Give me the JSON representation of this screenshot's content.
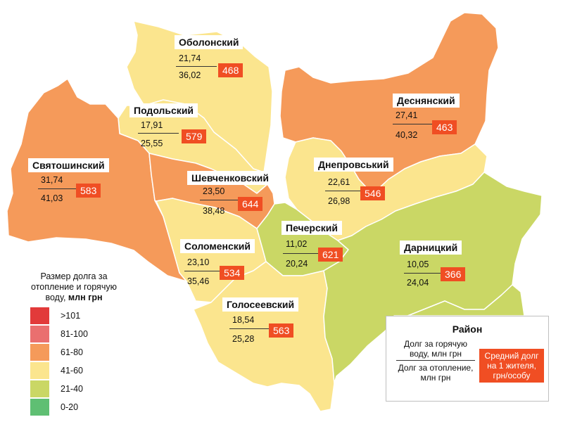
{
  "colors": {
    "range_gt101": "#e23a3a",
    "range_81_100": "#ea6f6f",
    "range_61_80": "#f59a5a",
    "range_41_60": "#fbe58e",
    "range_21_40": "#cad765",
    "range_0_20": "#5fbf73",
    "avg_badge": "#f04e23"
  },
  "districts": [
    {
      "name": "Оболонский",
      "hot_water": "21,74",
      "heating": "36,02",
      "avg": "468",
      "fill": "#fbe58e"
    },
    {
      "name": "Подольский",
      "hot_water": "17,91",
      "heating": "25,55",
      "avg": "579",
      "fill": "#fbe58e"
    },
    {
      "name": "Святошинский",
      "hot_water": "31,74",
      "heating": "41,03",
      "avg": "583",
      "fill": "#f59a5a"
    },
    {
      "name": "Шевченковский",
      "hot_water": "23,50",
      "heating": "38,48",
      "avg": "644",
      "fill": "#f59a5a"
    },
    {
      "name": "Деснянский",
      "hot_water": "27,41",
      "heating": "40,32",
      "avg": "463",
      "fill": "#f59a5a"
    },
    {
      "name": "Днепровський",
      "hot_water": "22,61",
      "heating": "26,98",
      "avg": "546",
      "fill": "#fbe58e"
    },
    {
      "name": "Печерский",
      "hot_water": "11,02",
      "heating": "20,24",
      "avg": "621",
      "fill": "#cad765"
    },
    {
      "name": "Соломенский",
      "hot_water": "23,10",
      "heating": "35,46",
      "avg": "534",
      "fill": "#fbe58e"
    },
    {
      "name": "Дарницкий",
      "hot_water": "10,05",
      "heating": "24,04",
      "avg": "366",
      "fill": "#cad765"
    },
    {
      "name": "Голосеевский",
      "hot_water": "18,54",
      "heating": "25,28",
      "avg": "563",
      "fill": "#fbe58e"
    }
  ],
  "legend": {
    "title_line1": "Размер долга за",
    "title_line2": "отопление и горячую",
    "title_line3": "воду,",
    "title_unit": "млн грн",
    "ranges": [
      {
        "label": ">101",
        "color": "#e23a3a"
      },
      {
        "label": "81-100",
        "color": "#ea6f6f"
      },
      {
        "label": "61-80",
        "color": "#f59a5a"
      },
      {
        "label": "41-60",
        "color": "#fbe58e"
      },
      {
        "label": "21-40",
        "color": "#cad765"
      },
      {
        "label": "0-20",
        "color": "#5fbf73"
      }
    ]
  },
  "key": {
    "title": "Район",
    "hot_water_label": "Долг за горячую воду, млн грн",
    "heating_label": "Долг за отопление, млн грн",
    "avg_label": "Средний долг на 1 жителя, грн/особу"
  }
}
